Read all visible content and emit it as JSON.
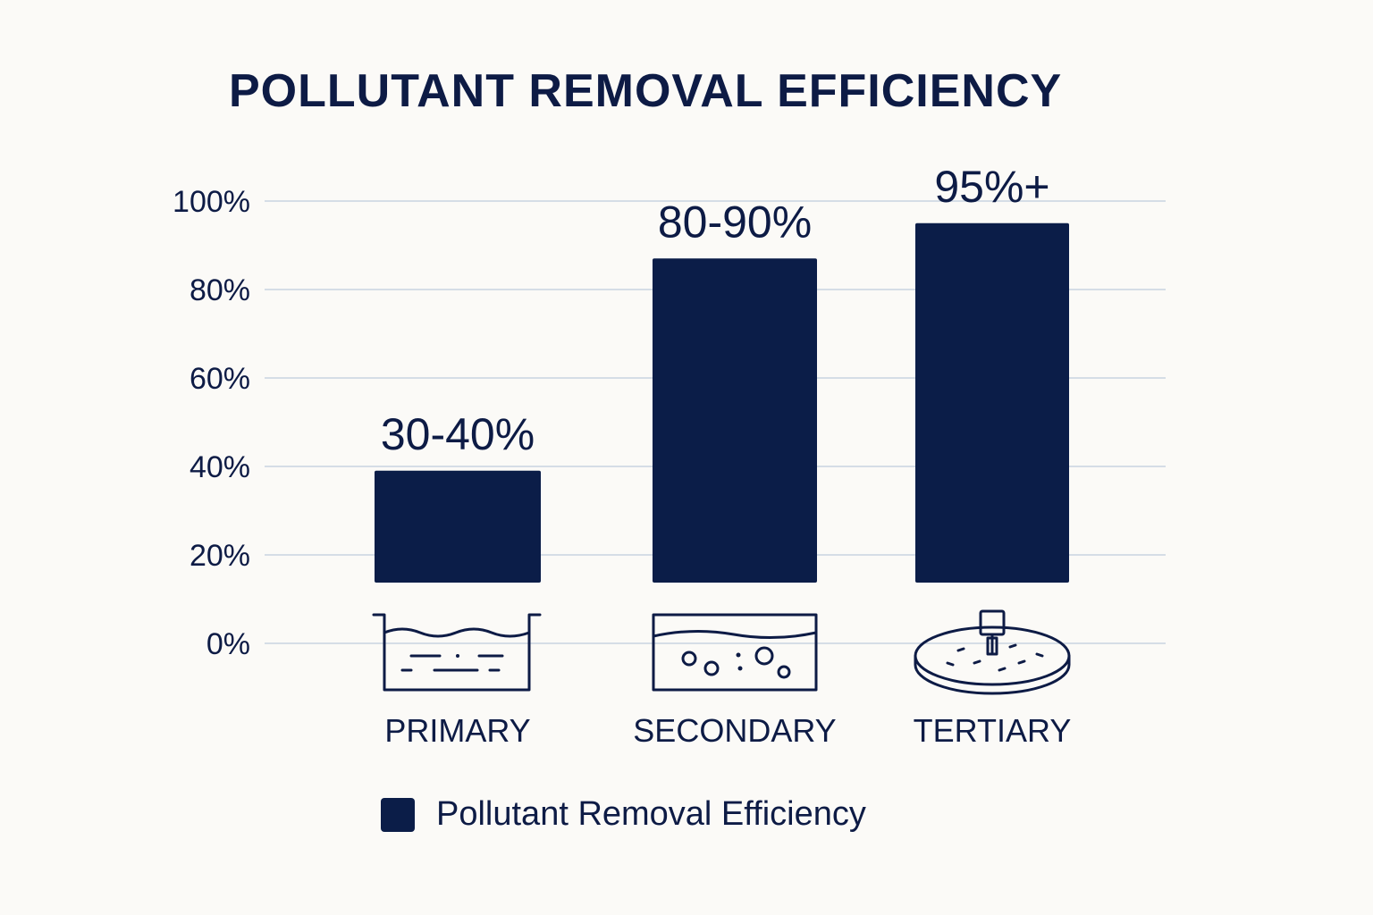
{
  "chart_data": {
    "type": "bar",
    "title": "POLLUTANT REMOVAL EFFICIENCY",
    "categories": [
      "PRIMARY",
      "SECONDARY",
      "TERTIARY"
    ],
    "series": [
      {
        "name": "Pollutant Removal Efficiency",
        "values": [
          35,
          85,
          95
        ],
        "labels": [
          "30-40%",
          "80-90%",
          "95%+"
        ]
      }
    ],
    "icons": [
      "settling-tank-icon",
      "aeration-basin-icon",
      "filtration-disc-icon"
    ],
    "y_ticks": [
      "0%",
      "20%",
      "40%",
      "60%",
      "80%",
      "100%"
    ],
    "ylim": [
      0,
      100
    ],
    "grid": true,
    "legend_position": "bottom",
    "xlabel": "",
    "ylabel": ""
  },
  "colors": {
    "bar": "#0b1d48",
    "grid": "#d5dde6",
    "text": "#0d1b45",
    "background": "#fbfaf7"
  }
}
